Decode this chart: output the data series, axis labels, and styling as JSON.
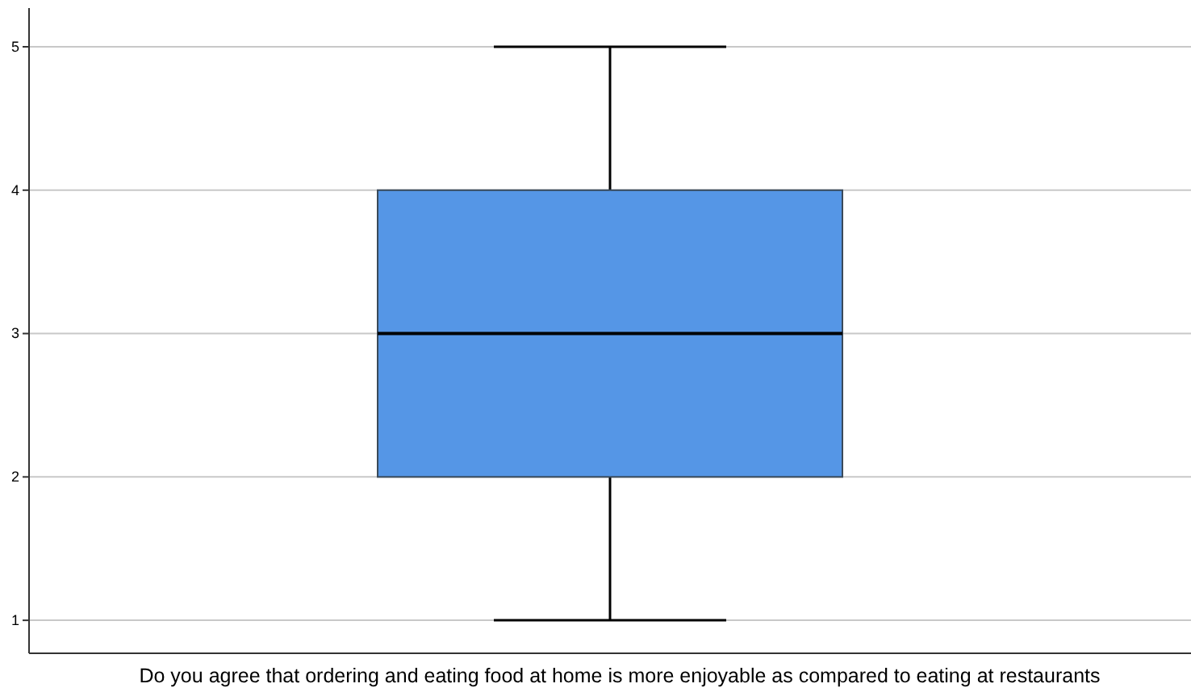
{
  "chart_data": {
    "type": "box",
    "xlabel": "Do you agree that ordering and eating food at home is more enjoyable as compared to eating at restaurants",
    "categories": [
      null
    ],
    "color": "#5596e6",
    "boxes": [
      {
        "low": 1,
        "q1": 2,
        "median": 3,
        "q3": 4,
        "high": 5
      }
    ],
    "ylim": [
      0.77,
      5.27
    ],
    "yticks": [
      1,
      2,
      3,
      4,
      5
    ],
    "grid": "y"
  }
}
